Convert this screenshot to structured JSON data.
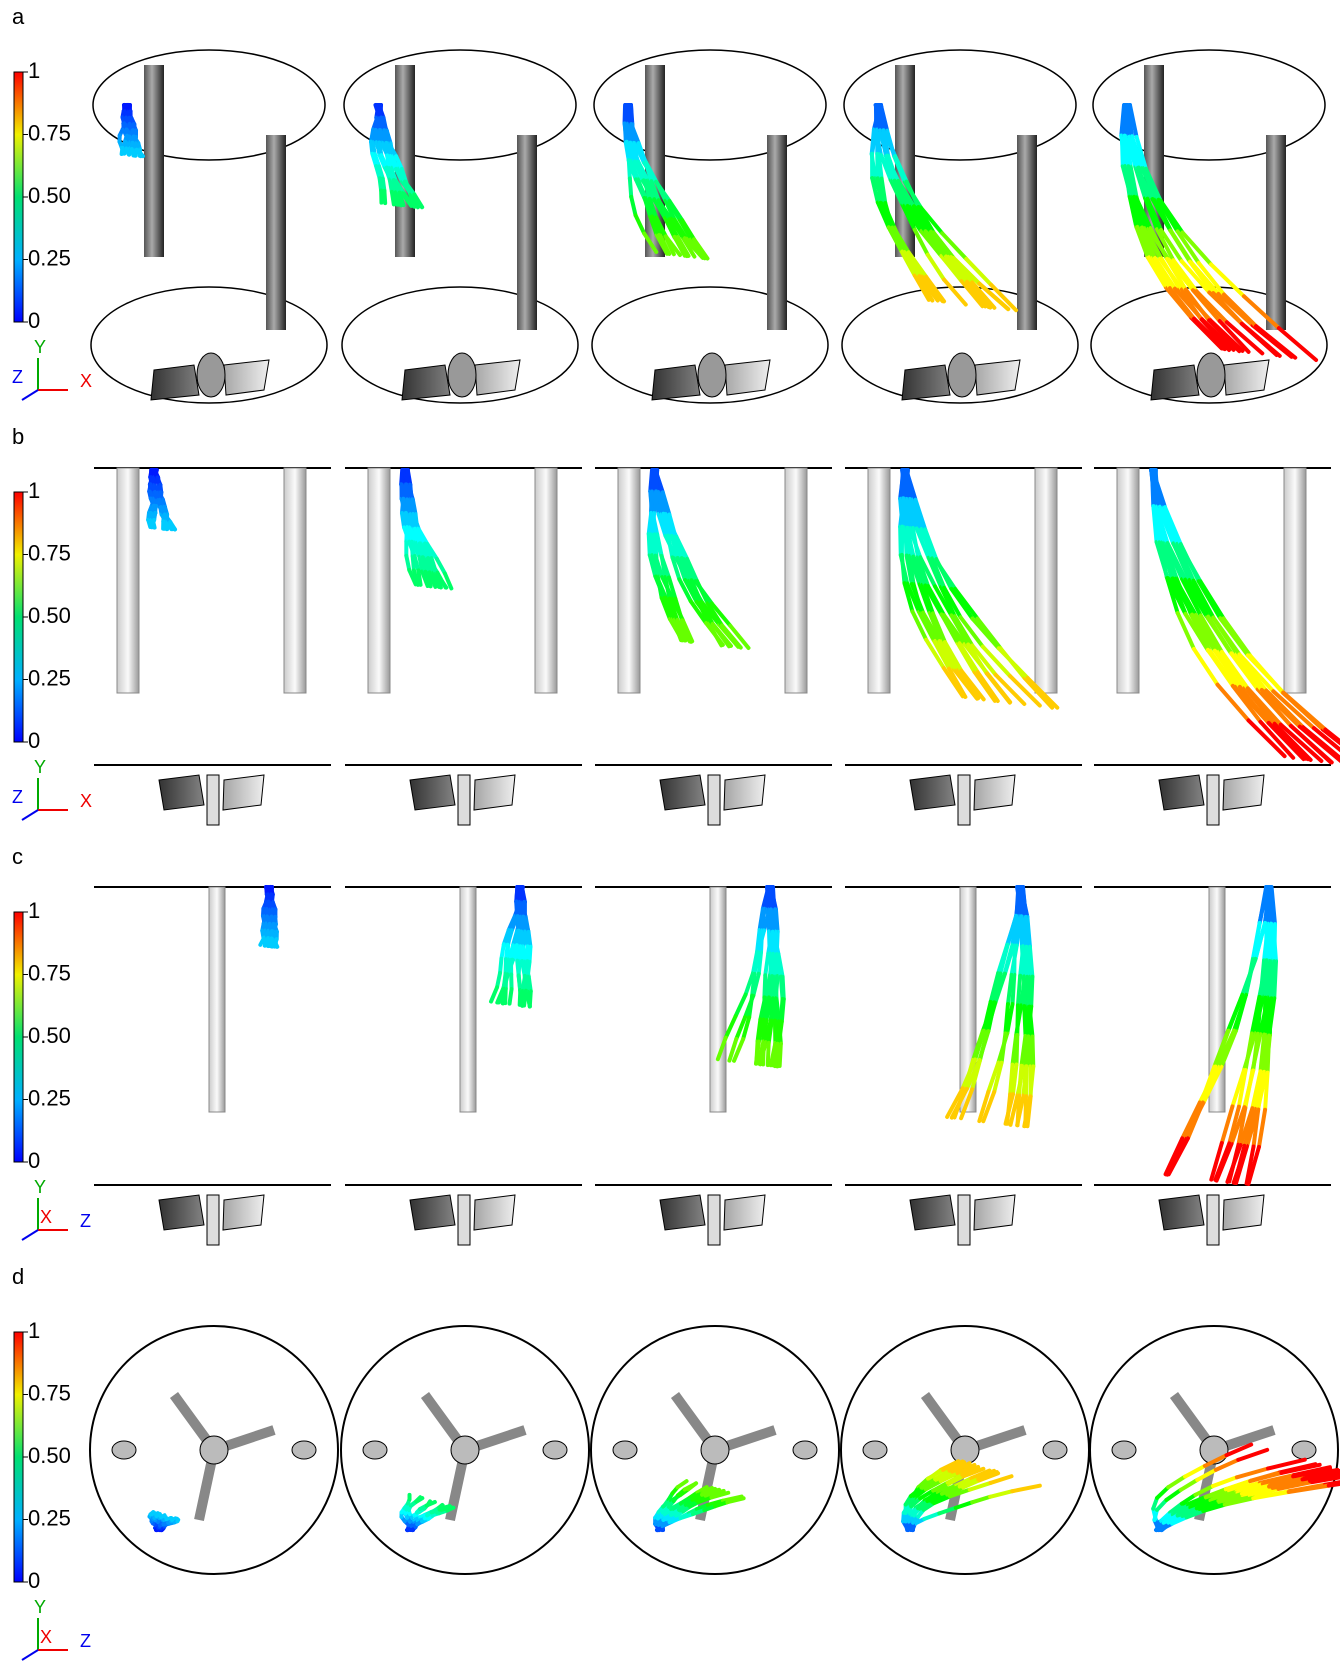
{
  "panels": [
    {
      "label": "a",
      "colorbar_ticks": [
        "1",
        "0.75",
        "0.50",
        "0.25",
        "0"
      ],
      "axes": [
        "Y",
        "Z",
        "X"
      ]
    },
    {
      "label": "b",
      "colorbar_ticks": [
        "1",
        "0.75",
        "0.50",
        "0.25",
        "0"
      ],
      "axes": [
        "Y",
        "Z",
        "X"
      ]
    },
    {
      "label": "c",
      "colorbar_ticks": [
        "1",
        "0.75",
        "0.50",
        "0.25",
        "0"
      ],
      "axes": [
        "Y",
        "X",
        "Z"
      ]
    },
    {
      "label": "d",
      "colorbar_ticks": [
        "1",
        "0.75",
        "0.50",
        "0.25",
        "0"
      ],
      "axes": [
        "Y",
        "X",
        "Z"
      ]
    }
  ]
}
